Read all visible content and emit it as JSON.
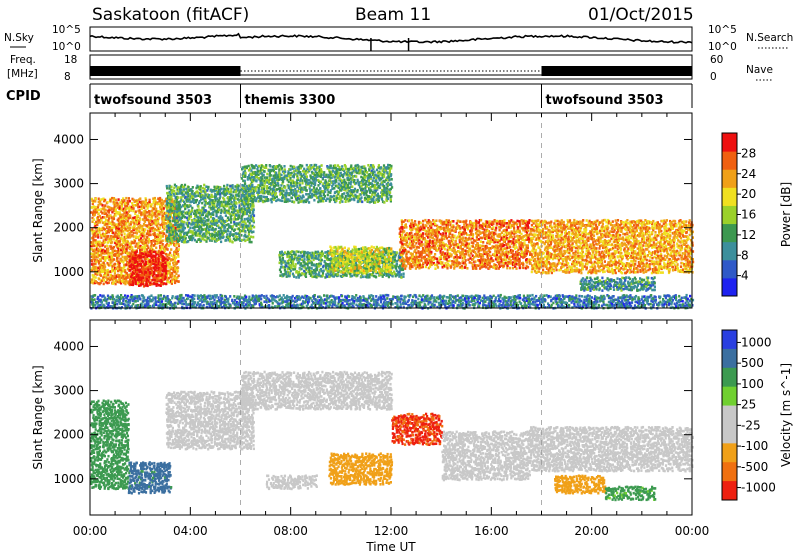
{
  "header": {
    "station": "Saskatoon (fitACF)",
    "beam": "Beam 11",
    "date": "01/Oct/2015"
  },
  "strip_labels": {
    "nsky": "N.Sky",
    "freq_line1": "Freq.",
    "freq_line2": "[MHz]",
    "cpid": "CPID",
    "nsearch": "N.Search",
    "nave": "Nave"
  },
  "strip_ticks": {
    "nsky_left": [
      "10^5",
      "10^0"
    ],
    "nsky_right": [
      "10^5",
      "10^0"
    ],
    "freq_left": [
      "18",
      "8"
    ],
    "nave_right": [
      "60",
      "0"
    ]
  },
  "cpid_segments": [
    {
      "name": "twofsound 3503",
      "start_h": 0,
      "end_h": 6
    },
    {
      "name": "themis 3300",
      "start_h": 6,
      "end_h": 18
    },
    {
      "name": "twofsound 3503",
      "start_h": 18,
      "end_h": 24
    }
  ],
  "chart_data": [
    {
      "type": "heatmap",
      "title": "",
      "xlabel": "Time UT",
      "ylabel": "Slant Range [km]",
      "x_ticks": [
        "00:00",
        "04:00",
        "08:00",
        "12:00",
        "16:00",
        "20:00",
        "00:00"
      ],
      "x_range_hours": [
        0,
        24
      ],
      "y_ticks": [
        "1000",
        "2000",
        "3000",
        "4000"
      ],
      "y_range_km": [
        180,
        4600
      ],
      "colorbar": {
        "label": "Power [dB]",
        "ticks": [
          "4",
          "8",
          "12",
          "16",
          "20",
          "24",
          "28"
        ],
        "range": [
          0,
          32
        ],
        "colors": [
          "#1e22f0",
          "#2f59c8",
          "#3c8f9c",
          "#3c9850",
          "#9bd12a",
          "#f0e020",
          "#f0a018",
          "#f06010",
          "#ee1010"
        ]
      },
      "scatter_regions": [
        {
          "t0": 0.0,
          "t1": 3.5,
          "r0": 750,
          "r1": 2700,
          "value": 24
        },
        {
          "t0": 1.5,
          "t1": 3.0,
          "r0": 700,
          "r1": 1500,
          "value": 30
        },
        {
          "t0": 3.0,
          "t1": 6.5,
          "r0": 1700,
          "r1": 3000,
          "value": 12
        },
        {
          "t0": 6.0,
          "t1": 12.0,
          "r0": 2600,
          "r1": 3450,
          "value": 12
        },
        {
          "t0": 7.5,
          "t1": 12.5,
          "r0": 900,
          "r1": 1500,
          "value": 12
        },
        {
          "t0": 9.5,
          "t1": 12.0,
          "r0": 1000,
          "r1": 1600,
          "value": 18
        },
        {
          "t0": 12.3,
          "t1": 17.5,
          "r0": 1100,
          "r1": 2200,
          "value": 25
        },
        {
          "t0": 17.5,
          "t1": 24.0,
          "r0": 1000,
          "r1": 2200,
          "value": 23
        },
        {
          "t0": 19.5,
          "t1": 22.5,
          "r0": 600,
          "r1": 900,
          "value": 10
        },
        {
          "t0": 0.0,
          "t1": 24.0,
          "r0": 200,
          "r1": 500,
          "value": 8
        }
      ]
    },
    {
      "type": "heatmap",
      "title": "",
      "xlabel": "Time UT",
      "ylabel": "Slant Range [km]",
      "x_ticks": [
        "00:00",
        "04:00",
        "08:00",
        "12:00",
        "16:00",
        "20:00",
        "00:00"
      ],
      "x_range_hours": [
        0,
        24
      ],
      "y_ticks": [
        "1000",
        "2000",
        "3000",
        "4000"
      ],
      "y_range_km": [
        180,
        4600
      ],
      "colorbar": {
        "label": "Velocity [m s^-1]",
        "ticks": [
          "1000",
          "500",
          "100",
          "25",
          "-25",
          "-100",
          "-500",
          "-1000"
        ],
        "colors": [
          "#2a3fe0",
          "#3b6fa0",
          "#3c9a50",
          "#70d030",
          "#c8c8c8",
          "#c8c8c8",
          "#f0a018",
          "#f07010",
          "#ee2010"
        ]
      },
      "scatter_regions": [
        {
          "t0": 0.0,
          "t1": 1.5,
          "r0": 800,
          "r1": 2800,
          "value": 200
        },
        {
          "t0": 1.5,
          "t1": 3.2,
          "r0": 700,
          "r1": 1400,
          "value": 400
        },
        {
          "t0": 3.0,
          "t1": 6.5,
          "r0": 1700,
          "r1": 3000,
          "value": 0
        },
        {
          "t0": 6.0,
          "t1": 12.0,
          "r0": 2600,
          "r1": 3450,
          "value": 0
        },
        {
          "t0": 7.0,
          "t1": 9.0,
          "r0": 800,
          "r1": 1100,
          "value": 0
        },
        {
          "t0": 9.5,
          "t1": 12.0,
          "r0": 900,
          "r1": 1600,
          "value": -200
        },
        {
          "t0": 12.0,
          "t1": 14.0,
          "r0": 1800,
          "r1": 2500,
          "value": -800
        },
        {
          "t0": 14.0,
          "t1": 17.5,
          "r0": 1000,
          "r1": 2100,
          "value": 0
        },
        {
          "t0": 17.5,
          "t1": 24.0,
          "r0": 1200,
          "r1": 2200,
          "value": 0
        },
        {
          "t0": 18.5,
          "t1": 20.5,
          "r0": 700,
          "r1": 1100,
          "value": -200
        },
        {
          "t0": 20.5,
          "t1": 22.5,
          "r0": 550,
          "r1": 850,
          "value": 80
        }
      ]
    }
  ]
}
